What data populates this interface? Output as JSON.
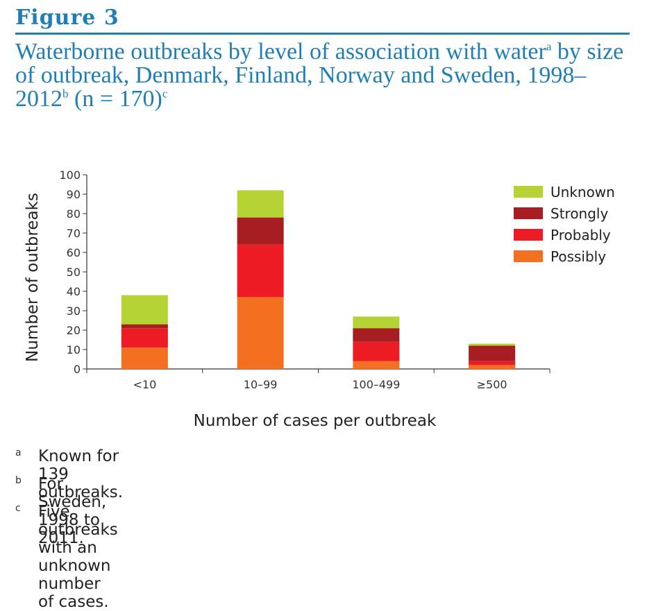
{
  "figure": {
    "label": "Figure 3",
    "title_parts": [
      "Waterborne outbreaks by level of association with water",
      "a",
      " by size of outbreak, Denmark, Finland, Norway and Sweden, 1998–2012",
      "b",
      " (n = 170)",
      "c"
    ]
  },
  "colors": {
    "Unknown": "#b5d334",
    "Strongly": "#a61e22",
    "Probably": "#ed1c24",
    "Possibly": "#f37021",
    "title": "#1f7fb5"
  },
  "chart_data": {
    "type": "bar",
    "stacked": true,
    "categories": [
      "<10",
      "10–99",
      "100–499",
      "≥500"
    ],
    "series": [
      {
        "name": "Possibly",
        "values": [
          11,
          37,
          4,
          2
        ]
      },
      {
        "name": "Probably",
        "values": [
          10,
          27,
          10,
          2
        ]
      },
      {
        "name": "Strongly",
        "values": [
          2,
          14,
          7,
          8
        ]
      },
      {
        "name": "Unknown",
        "values": [
          15,
          14,
          6,
          1
        ]
      }
    ],
    "xlabel": "Number of cases per outbreak",
    "ylabel": "Number of outbreaks",
    "ylim": [
      0,
      100
    ],
    "yticks": [
      0,
      10,
      20,
      30,
      40,
      50,
      60,
      70,
      80,
      90,
      100
    ],
    "legend_order": [
      "Unknown",
      "Strongly",
      "Probably",
      "Possibly"
    ],
    "legend_position": "top-right",
    "grid": false
  },
  "footnotes": [
    {
      "marker": "a",
      "text": "Known for 139 outbreaks."
    },
    {
      "marker": "b",
      "text": "For Sweden, 1998 to 2011."
    },
    {
      "marker": "c",
      "text": "Five outbreaks with an unknown number of cases."
    }
  ]
}
